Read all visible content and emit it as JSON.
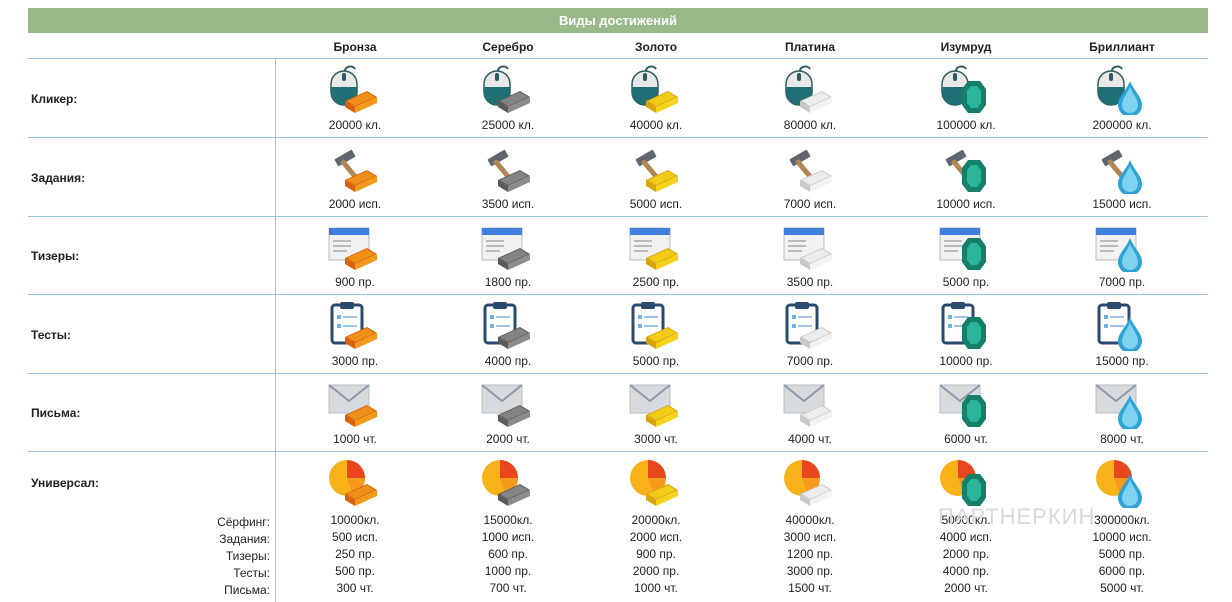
{
  "title": "Виды достижений",
  "levels": [
    {
      "name": "Бронза",
      "color": "#f39a1c",
      "dark": "#d8620c"
    },
    {
      "name": "Серебро",
      "color": "#8c8c8c",
      "dark": "#5a5a5a"
    },
    {
      "name": "Золото",
      "color": "#f7d21a",
      "dark": "#d6a40c"
    },
    {
      "name": "Платина",
      "color": "#f2f2f2",
      "dark": "#c8c8c8"
    },
    {
      "name": "Изумруд",
      "color": "#2bb59b",
      "dark": "#157f6a"
    },
    {
      "name": "Бриллиант",
      "color": "#7fd3f0",
      "dark": "#2fa3d6"
    }
  ],
  "rows": [
    {
      "label": "Кликер:",
      "icon": "mouse-icon",
      "values": [
        "20000 кл.",
        "25000 кл.",
        "40000 кл.",
        "80000 кл.",
        "100000 кл.",
        "200000 кл."
      ]
    },
    {
      "label": "Задания:",
      "icon": "hammer-icon",
      "values": [
        "2000 исп.",
        "3500 исп.",
        "5000 исп.",
        "7000 исп.",
        "10000 исп.",
        "15000 исп."
      ]
    },
    {
      "label": "Тизеры:",
      "icon": "browser-window-icon",
      "values": [
        "900 пр.",
        "1800 пр.",
        "2500 пр.",
        "3500 пр.",
        "5000 пр.",
        "7000 пр."
      ]
    },
    {
      "label": "Тесты:",
      "icon": "clipboard-icon",
      "values": [
        "3000 пр.",
        "4000 пр.",
        "5000 пр.",
        "7000 пр.",
        "10000 пр.",
        "15000 пр."
      ]
    },
    {
      "label": "Письма:",
      "icon": "envelope-icon",
      "values": [
        "1000 чт.",
        "2000 чт.",
        "3000 чт.",
        "4000 чт.",
        "6000 чт.",
        "8000 чт."
      ]
    }
  ],
  "universal": {
    "label": "Универсал:",
    "icon": "pie-chart-icon",
    "sublabels": [
      "Сёрфинг:",
      "Задания:",
      "Тизеры:",
      "Тесты:",
      "Письма:"
    ],
    "values": [
      [
        "10000кл.",
        "500 исп.",
        "250 пр.",
        "500 пр.",
        "300 чт."
      ],
      [
        "15000кл.",
        "1000 исп.",
        "600 пр.",
        "1000 пр.",
        "700 чт."
      ],
      [
        "20000кл.",
        "2000 исп.",
        "900 пр.",
        "2000 пр.",
        "1000 чт."
      ],
      [
        "40000кл.",
        "3000 исп.",
        "1200 пр.",
        "3000 пр.",
        "1500 чт."
      ],
      [
        "50000кл.",
        "4000 исп.",
        "2000 пр.",
        "4000 пр.",
        "2000 чт."
      ],
      [
        "300000кл.",
        "10000 исп.",
        "5000 пр.",
        "6000 пр.",
        "5000 чт."
      ]
    ]
  },
  "watermark": "ПАРТНЕРКИН"
}
